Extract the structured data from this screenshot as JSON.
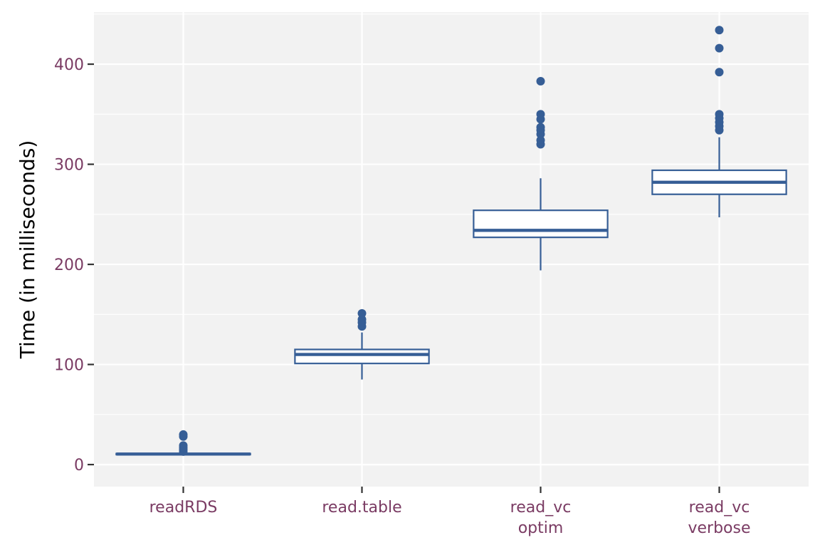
{
  "chart_data": {
    "type": "box",
    "title": "",
    "xlabel": "",
    "ylabel": "Time (in milliseconds)",
    "ylim": [
      -22,
      452
    ],
    "yticks": [
      0,
      100,
      200,
      300,
      400
    ],
    "grid": true,
    "colors": {
      "panel": "#f2f2f2",
      "grid": "#ffffff",
      "box": "#365e96",
      "tick_label": "#7a3b63",
      "axis_title": "#000000"
    },
    "categories": [
      {
        "label_lines": [
          "readRDS"
        ],
        "whisker_low": 9,
        "q1": 10,
        "median": 10.5,
        "q3": 11,
        "whisker_high": 12,
        "outliers": [
          13,
          15,
          17,
          19,
          28,
          30
        ]
      },
      {
        "label_lines": [
          "read.table"
        ],
        "whisker_low": 85,
        "q1": 101,
        "median": 110,
        "q3": 115,
        "whisker_high": 132,
        "outliers": [
          138,
          142,
          145,
          151
        ]
      },
      {
        "label_lines": [
          "read_vc",
          "optim"
        ],
        "whisker_low": 194,
        "q1": 227,
        "median": 234,
        "q3": 254,
        "whisker_high": 286,
        "outliers": [
          320,
          324,
          330,
          334,
          337,
          345,
          350,
          383
        ]
      },
      {
        "label_lines": [
          "read_vc",
          "verbose"
        ],
        "whisker_low": 247,
        "q1": 270,
        "median": 282,
        "q3": 294,
        "whisker_high": 327,
        "outliers": [
          334,
          338,
          342,
          346,
          350,
          392,
          416,
          434
        ]
      }
    ]
  }
}
